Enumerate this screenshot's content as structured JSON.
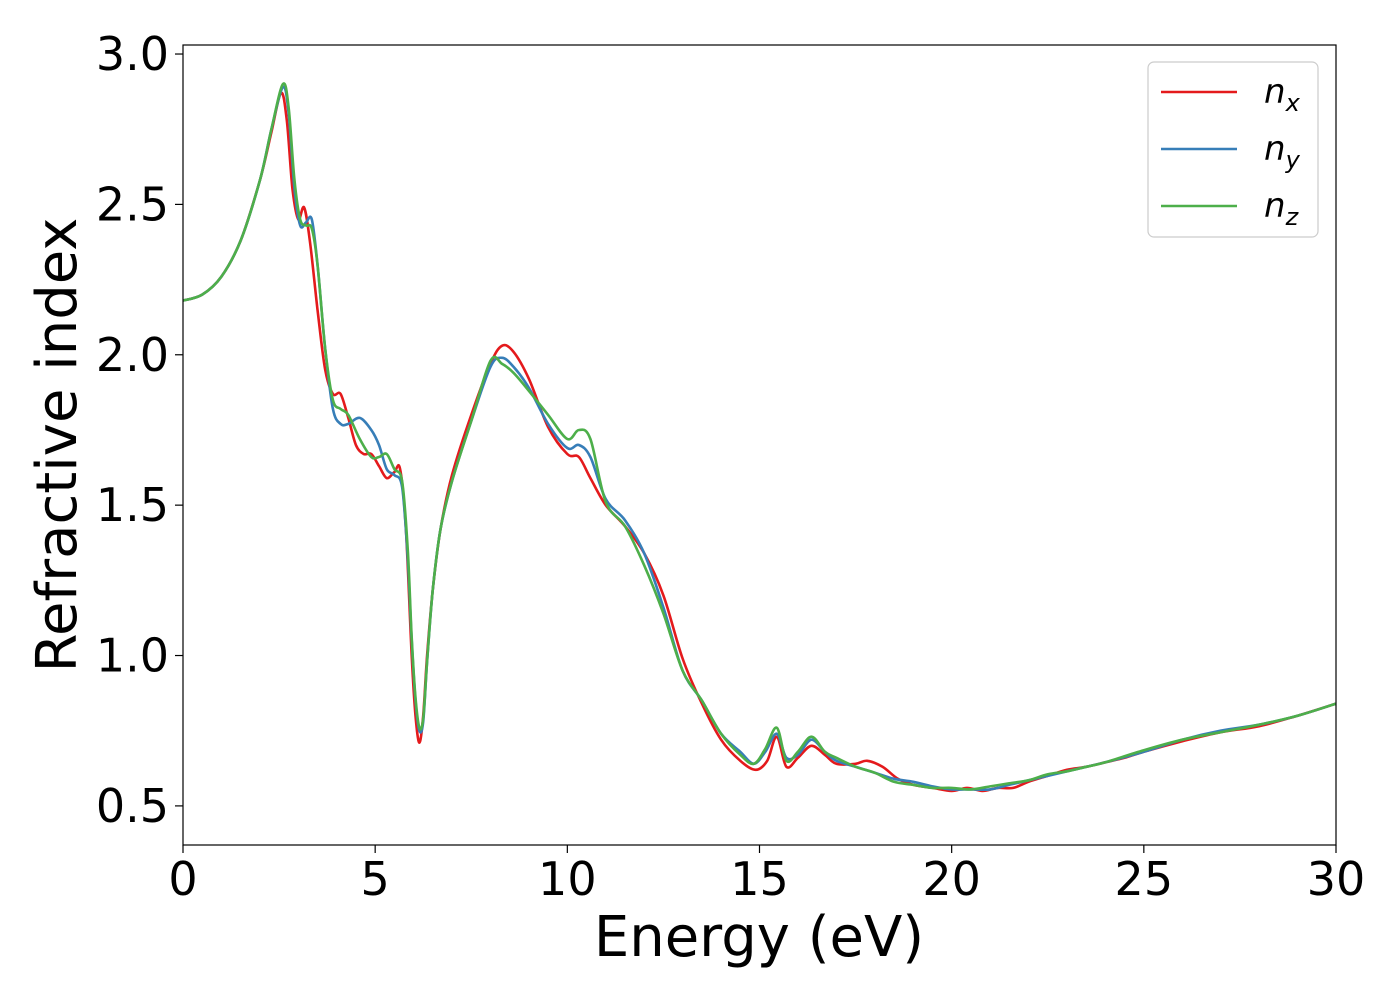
{
  "chart_data": {
    "type": "line",
    "xlabel": "Energy (eV)",
    "ylabel": "Refractive index",
    "xlim": [
      0,
      30
    ],
    "ylim": [
      0.37,
      3.03
    ],
    "xticks": [
      "0",
      "5",
      "10",
      "15",
      "20",
      "25",
      "30"
    ],
    "yticks": [
      "0.5",
      "1.0",
      "1.5",
      "2.0",
      "2.5",
      "3.0"
    ],
    "grid": false,
    "legend_position": "top-right",
    "series": [
      {
        "name": "n",
        "sub": "x",
        "color": "#e41a1c",
        "x": [
          0,
          0.5,
          1.0,
          1.5,
          2.0,
          2.3,
          2.55,
          2.7,
          2.85,
          3.0,
          3.15,
          3.3,
          3.5,
          3.7,
          3.9,
          4.1,
          4.3,
          4.5,
          4.7,
          4.9,
          5.1,
          5.3,
          5.5,
          5.65,
          5.8,
          5.95,
          6.05,
          6.15,
          6.25,
          6.35,
          6.5,
          6.7,
          7.0,
          7.5,
          8.0,
          8.3,
          8.6,
          9.0,
          9.5,
          10.0,
          10.3,
          10.6,
          11.0,
          11.5,
          12.0,
          12.5,
          13.0,
          13.5,
          14.0,
          14.5,
          14.9,
          15.2,
          15.45,
          15.7,
          16.0,
          16.35,
          16.7,
          17.0,
          17.5,
          17.8,
          18.2,
          18.6,
          19.0,
          19.5,
          20.0,
          20.4,
          20.8,
          21.2,
          21.6,
          22.0,
          22.5,
          23.0,
          23.5,
          24.0,
          24.5,
          25.0,
          26.0,
          27.0,
          28.0,
          29.0,
          30.0
        ],
        "y": [
          2.18,
          2.2,
          2.26,
          2.38,
          2.58,
          2.74,
          2.87,
          2.78,
          2.55,
          2.45,
          2.49,
          2.38,
          2.15,
          1.95,
          1.87,
          1.87,
          1.79,
          1.7,
          1.67,
          1.67,
          1.63,
          1.59,
          1.61,
          1.62,
          1.42,
          1.0,
          0.8,
          0.71,
          0.8,
          1.0,
          1.22,
          1.42,
          1.6,
          1.8,
          1.97,
          2.03,
          2.01,
          1.92,
          1.76,
          1.67,
          1.66,
          1.59,
          1.5,
          1.43,
          1.34,
          1.2,
          0.99,
          0.84,
          0.72,
          0.65,
          0.62,
          0.65,
          0.73,
          0.63,
          0.66,
          0.7,
          0.67,
          0.64,
          0.64,
          0.65,
          0.63,
          0.59,
          0.57,
          0.56,
          0.55,
          0.56,
          0.55,
          0.56,
          0.56,
          0.58,
          0.6,
          0.62,
          0.63,
          0.645,
          0.66,
          0.68,
          0.715,
          0.745,
          0.765,
          0.8,
          0.84
        ]
      },
      {
        "name": "n",
        "sub": "y",
        "color": "#377eb8",
        "x": [
          0,
          0.5,
          1.0,
          1.5,
          2.0,
          2.3,
          2.6,
          2.75,
          2.9,
          3.05,
          3.2,
          3.35,
          3.5,
          3.7,
          3.9,
          4.1,
          4.3,
          4.6,
          4.9,
          5.1,
          5.3,
          5.5,
          5.7,
          5.85,
          5.95,
          6.05,
          6.15,
          6.25,
          6.35,
          6.5,
          6.7,
          7.0,
          7.5,
          8.0,
          8.3,
          8.6,
          9.0,
          9.5,
          10.0,
          10.3,
          10.6,
          11.0,
          11.5,
          12.0,
          12.5,
          13.0,
          13.5,
          14.0,
          14.5,
          14.85,
          15.15,
          15.45,
          15.7,
          16.0,
          16.35,
          16.7,
          17.0,
          17.5,
          18.0,
          18.5,
          19.0,
          19.5,
          20.0,
          20.5,
          21.0,
          21.5,
          22.0,
          22.5,
          23.0,
          23.5,
          24.0,
          25.0,
          26.0,
          27.0,
          28.0,
          29.0,
          30.0
        ],
        "y": [
          2.18,
          2.2,
          2.26,
          2.38,
          2.58,
          2.75,
          2.89,
          2.8,
          2.55,
          2.43,
          2.44,
          2.45,
          2.3,
          2.02,
          1.82,
          1.77,
          1.77,
          1.79,
          1.75,
          1.7,
          1.62,
          1.6,
          1.56,
          1.32,
          1.05,
          0.85,
          0.75,
          0.78,
          0.98,
          1.22,
          1.42,
          1.58,
          1.78,
          1.96,
          1.99,
          1.96,
          1.89,
          1.77,
          1.69,
          1.7,
          1.66,
          1.52,
          1.45,
          1.34,
          1.16,
          0.95,
          0.85,
          0.74,
          0.68,
          0.64,
          0.68,
          0.74,
          0.66,
          0.67,
          0.72,
          0.68,
          0.65,
          0.63,
          0.61,
          0.59,
          0.58,
          0.565,
          0.555,
          0.555,
          0.555,
          0.57,
          0.585,
          0.6,
          0.615,
          0.63,
          0.645,
          0.68,
          0.72,
          0.75,
          0.77,
          0.8,
          0.84
        ]
      },
      {
        "name": "n",
        "sub": "z",
        "color": "#4daf4a",
        "x": [
          0,
          0.5,
          1.0,
          1.5,
          2.0,
          2.3,
          2.6,
          2.75,
          2.9,
          3.05,
          3.2,
          3.35,
          3.5,
          3.7,
          3.9,
          4.1,
          4.3,
          4.6,
          4.9,
          5.1,
          5.3,
          5.5,
          5.7,
          5.85,
          5.95,
          6.05,
          6.15,
          6.25,
          6.35,
          6.5,
          6.7,
          7.0,
          7.5,
          8.0,
          8.3,
          8.6,
          9.0,
          9.5,
          10.0,
          10.3,
          10.6,
          11.0,
          11.5,
          12.0,
          12.5,
          13.0,
          13.5,
          14.0,
          14.5,
          14.85,
          15.15,
          15.45,
          15.7,
          16.0,
          16.35,
          16.7,
          17.0,
          17.5,
          18.0,
          18.5,
          19.0,
          19.5,
          20.0,
          20.5,
          21.0,
          21.5,
          22.0,
          22.5,
          23.0,
          23.5,
          24.0,
          25.0,
          26.0,
          27.0,
          28.0,
          29.0,
          30.0
        ],
        "y": [
          2.18,
          2.2,
          2.26,
          2.38,
          2.58,
          2.75,
          2.9,
          2.82,
          2.58,
          2.45,
          2.43,
          2.42,
          2.3,
          2.02,
          1.85,
          1.82,
          1.8,
          1.72,
          1.66,
          1.66,
          1.67,
          1.62,
          1.58,
          1.35,
          1.06,
          0.86,
          0.76,
          0.79,
          0.98,
          1.22,
          1.42,
          1.58,
          1.78,
          1.98,
          1.97,
          1.94,
          1.88,
          1.8,
          1.72,
          1.75,
          1.72,
          1.51,
          1.43,
          1.3,
          1.14,
          0.95,
          0.85,
          0.74,
          0.67,
          0.64,
          0.69,
          0.76,
          0.65,
          0.68,
          0.73,
          0.68,
          0.66,
          0.63,
          0.61,
          0.58,
          0.57,
          0.56,
          0.56,
          0.555,
          0.565,
          0.575,
          0.585,
          0.605,
          0.615,
          0.63,
          0.645,
          0.685,
          0.72,
          0.745,
          0.77,
          0.8,
          0.84
        ]
      }
    ]
  }
}
